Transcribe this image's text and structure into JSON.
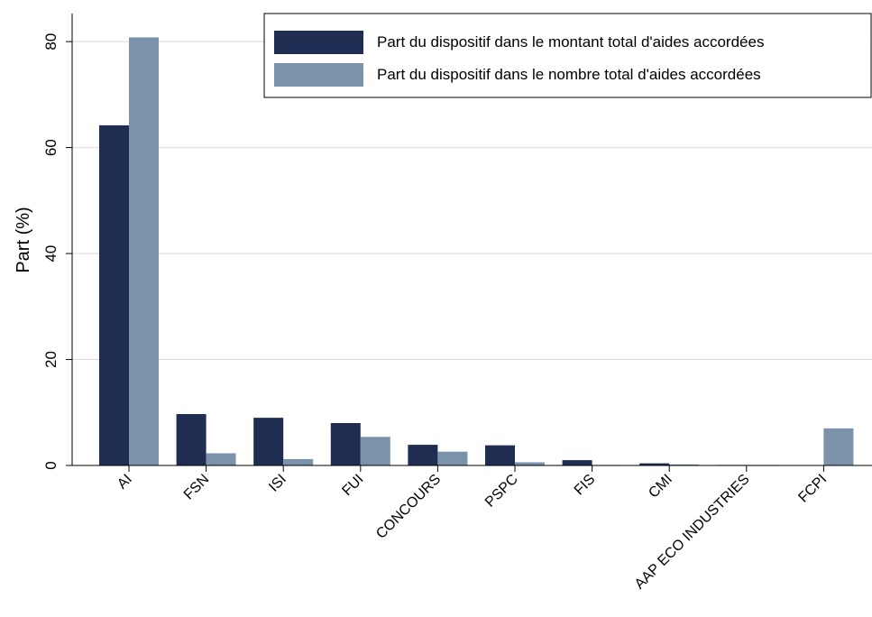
{
  "chart_data": {
    "type": "bar",
    "y_label": "Part (%)",
    "categories": [
      "AI",
      "FSN",
      "ISI",
      "FUI",
      "CONCOURS",
      "PSPC",
      "FIS",
      "CMI",
      "AAP ECO INDUSTRIES",
      "FCPI"
    ],
    "series": [
      {
        "name": "Part du dispositif dans le montant total d'aides accordées",
        "color": "#1f2d52",
        "values": [
          64.2,
          9.7,
          9.0,
          8.0,
          3.9,
          3.8,
          1.0,
          0.4,
          0.1,
          0
        ]
      },
      {
        "name": "Part du dispositif dans le nombre total d'aides accordées",
        "color": "#7b92ab",
        "values": [
          80.8,
          2.3,
          1.2,
          5.4,
          2.6,
          0.6,
          0.1,
          0.2,
          0.1,
          7.0
        ]
      }
    ],
    "ylim": [
      0,
      85.3
    ],
    "yticks": [
      0,
      20,
      40,
      60,
      80
    ],
    "grid": true,
    "legend": "top-right"
  }
}
